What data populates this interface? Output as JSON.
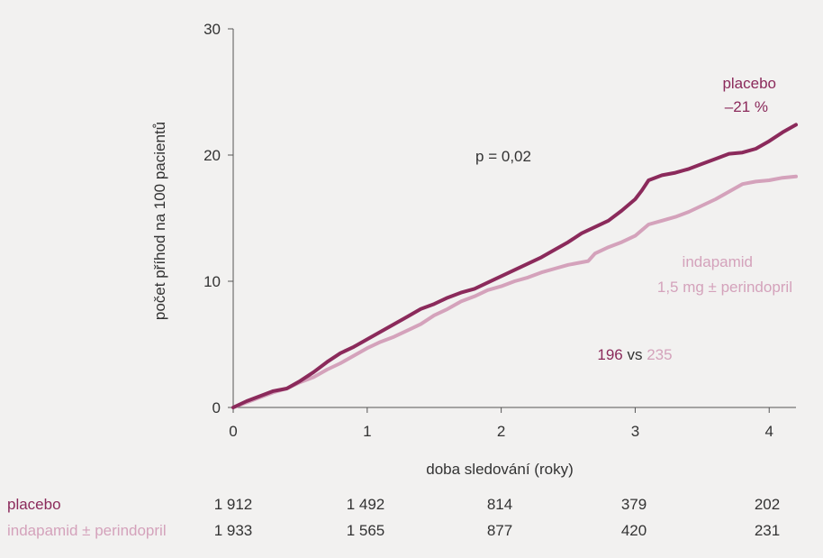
{
  "chart_data": {
    "type": "line",
    "xlabel": "doba sledování (roky)",
    "ylabel": "počet příhod na 100 pacientů",
    "xlim": [
      0,
      4.2
    ],
    "ylim": [
      0,
      30
    ],
    "x_ticks": [
      "0",
      "1",
      "2",
      "3",
      "4"
    ],
    "y_ticks": [
      "0",
      "10",
      "20",
      "30"
    ],
    "grid": false,
    "colors": {
      "placebo": "#8b2a5b",
      "indapamid": "#d4a2bb",
      "text": "#333333"
    },
    "series": [
      {
        "name": "placebo",
        "x": [
          0,
          0.1,
          0.2,
          0.3,
          0.4,
          0.5,
          0.6,
          0.7,
          0.8,
          0.9,
          1.0,
          1.1,
          1.2,
          1.3,
          1.4,
          1.5,
          1.6,
          1.7,
          1.8,
          1.9,
          2.0,
          2.1,
          2.2,
          2.3,
          2.4,
          2.5,
          2.6,
          2.7,
          2.8,
          2.9,
          3.0,
          3.05,
          3.1,
          3.2,
          3.3,
          3.4,
          3.5,
          3.6,
          3.7,
          3.8,
          3.9,
          4.0,
          4.1,
          4.2
        ],
        "y": [
          0,
          0.5,
          0.9,
          1.3,
          1.5,
          2.1,
          2.8,
          3.6,
          4.3,
          4.8,
          5.4,
          6.0,
          6.6,
          7.2,
          7.8,
          8.2,
          8.7,
          9.1,
          9.4,
          9.9,
          10.4,
          10.9,
          11.4,
          11.9,
          12.5,
          13.1,
          13.8,
          14.3,
          14.8,
          15.6,
          16.5,
          17.2,
          18.0,
          18.4,
          18.6,
          18.9,
          19.3,
          19.7,
          20.1,
          20.2,
          20.5,
          21.1,
          21.8,
          22.4
        ]
      },
      {
        "name": "indapamid 1,5 mg ± perindopril",
        "x": [
          0,
          0.1,
          0.2,
          0.3,
          0.4,
          0.5,
          0.6,
          0.7,
          0.8,
          0.9,
          1.0,
          1.1,
          1.2,
          1.3,
          1.4,
          1.5,
          1.6,
          1.7,
          1.8,
          1.9,
          2.0,
          2.1,
          2.2,
          2.3,
          2.4,
          2.5,
          2.6,
          2.65,
          2.7,
          2.8,
          2.9,
          3.0,
          3.1,
          3.2,
          3.3,
          3.4,
          3.5,
          3.6,
          3.7,
          3.8,
          3.9,
          4.0,
          4.1,
          4.2
        ],
        "y": [
          0,
          0.4,
          0.8,
          1.2,
          1.5,
          2.0,
          2.4,
          3.0,
          3.5,
          4.1,
          4.7,
          5.2,
          5.6,
          6.1,
          6.6,
          7.3,
          7.8,
          8.4,
          8.8,
          9.3,
          9.6,
          10.0,
          10.3,
          10.7,
          11.0,
          11.3,
          11.5,
          11.6,
          12.2,
          12.7,
          13.1,
          13.6,
          14.5,
          14.8,
          15.1,
          15.5,
          16.0,
          16.5,
          17.1,
          17.7,
          17.9,
          18.0,
          18.2,
          18.3
        ]
      }
    ],
    "annotations": {
      "placebo_label": "placebo",
      "reduction": "–21 %",
      "p_value": "p = 0,02",
      "indapamid_label_1": "indapamid",
      "indapamid_label_2": "1,5 mg ± perindopril",
      "events_placebo": "196",
      "events_vs": " vs ",
      "events_indapamid": "235"
    },
    "risk_table": {
      "rows": [
        {
          "label": "placebo",
          "values": [
            "1 912",
            "1 492",
            "814",
            "379",
            "202"
          ]
        },
        {
          "label": "indapamid ± perindopril",
          "values": [
            "1 933",
            "1 565",
            "877",
            "420",
            "231"
          ]
        }
      ]
    }
  }
}
